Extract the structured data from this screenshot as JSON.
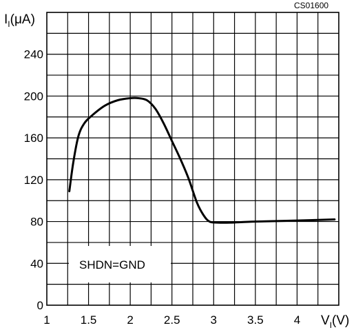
{
  "chart_data": {
    "type": "line",
    "code_label": "CS01600",
    "ylabel": {
      "main": "I",
      "sub": "I",
      "unit": "(μA)"
    },
    "xlabel": {
      "main": "V",
      "sub": "I",
      "unit": "(V)"
    },
    "xlim": [
      1,
      4.5
    ],
    "ylim": [
      0,
      280
    ],
    "x_ticks": [
      1,
      1.5,
      2,
      2.5,
      3,
      3.5,
      4
    ],
    "x_tick_labels": [
      "1",
      "1.5",
      "2",
      "2.5",
      "3",
      "3.5",
      "4"
    ],
    "y_ticks": [
      0,
      40,
      80,
      120,
      160,
      200,
      240
    ],
    "y_tick_labels": [
      "0",
      "40",
      "80",
      "120",
      "160",
      "200",
      "240"
    ],
    "grid": true,
    "annotation": "SHDN=GND",
    "series": [
      {
        "x": [
          1.27,
          1.32,
          1.38,
          1.45,
          1.55,
          1.7,
          1.85,
          2.0,
          2.1,
          2.2,
          2.3,
          2.4,
          2.5,
          2.6,
          2.7,
          2.8,
          2.88,
          2.95,
          3.05,
          3.2,
          3.5,
          4.0,
          4.45
        ],
        "y": [
          109,
          138,
          162,
          174,
          182,
          191,
          196,
          198,
          198,
          196,
          188,
          174,
          157,
          140,
          121,
          98,
          86,
          80,
          79,
          79,
          80,
          81,
          82
        ]
      }
    ]
  }
}
